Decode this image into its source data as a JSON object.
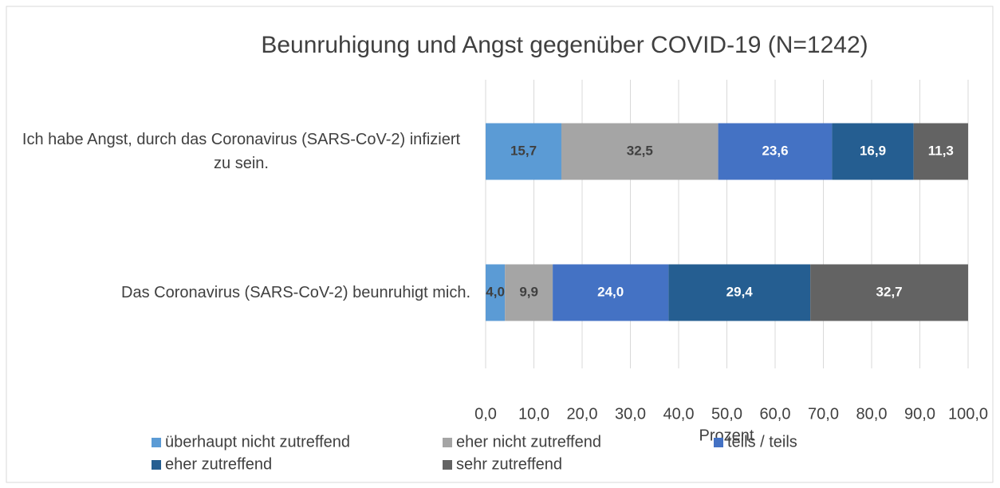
{
  "chart_data": {
    "type": "stacked-bar-horizontal",
    "title": "Beunruhigung und Angst gegenüber COVID-19 (N=1242)",
    "xlabel": "Prozent",
    "categories": [
      "Ich habe Angst, durch das Coronavirus (SARS-CoV-2) infiziert zu sein.",
      "Das Coronavirus (SARS-CoV-2) beunruhigt mich."
    ],
    "series": [
      {
        "name": "überhaupt nicht zutreffend",
        "color": "#5b9bd5",
        "values": [
          15.7,
          4.0
        ],
        "value_labels": [
          "15,7",
          "4,0"
        ]
      },
      {
        "name": "eher nicht zutreffend",
        "color": "#a5a5a5",
        "values": [
          32.5,
          9.9
        ],
        "value_labels": [
          "32,5",
          "9,9"
        ]
      },
      {
        "name": "teils / teils",
        "color": "#4472c4",
        "values": [
          23.6,
          24.0
        ],
        "value_labels": [
          "23,6",
          "24,0"
        ]
      },
      {
        "name": "eher zutreffend",
        "color": "#255e91",
        "values": [
          16.9,
          29.4
        ],
        "value_labels": [
          "16,9",
          "29,4"
        ]
      },
      {
        "name": "sehr zutreffend",
        "color": "#636363",
        "values": [
          11.3,
          32.7
        ],
        "value_labels": [
          "11,3",
          "32,7"
        ]
      }
    ],
    "xlim": [
      0,
      100
    ],
    "xticks": [
      {
        "value": 0,
        "label": "0,0"
      },
      {
        "value": 10,
        "label": "10,0"
      },
      {
        "value": 20,
        "label": "20,0"
      },
      {
        "value": 30,
        "label": "30,0"
      },
      {
        "value": 40,
        "label": "40,0"
      },
      {
        "value": 50,
        "label": "50,0"
      },
      {
        "value": 60,
        "label": "60,0"
      },
      {
        "value": 70,
        "label": "70,0"
      },
      {
        "value": 80,
        "label": "80,0"
      },
      {
        "value": 90,
        "label": "90,0"
      },
      {
        "value": 100,
        "label": "100,0"
      }
    ],
    "grid": true,
    "legend": "bottom"
  }
}
